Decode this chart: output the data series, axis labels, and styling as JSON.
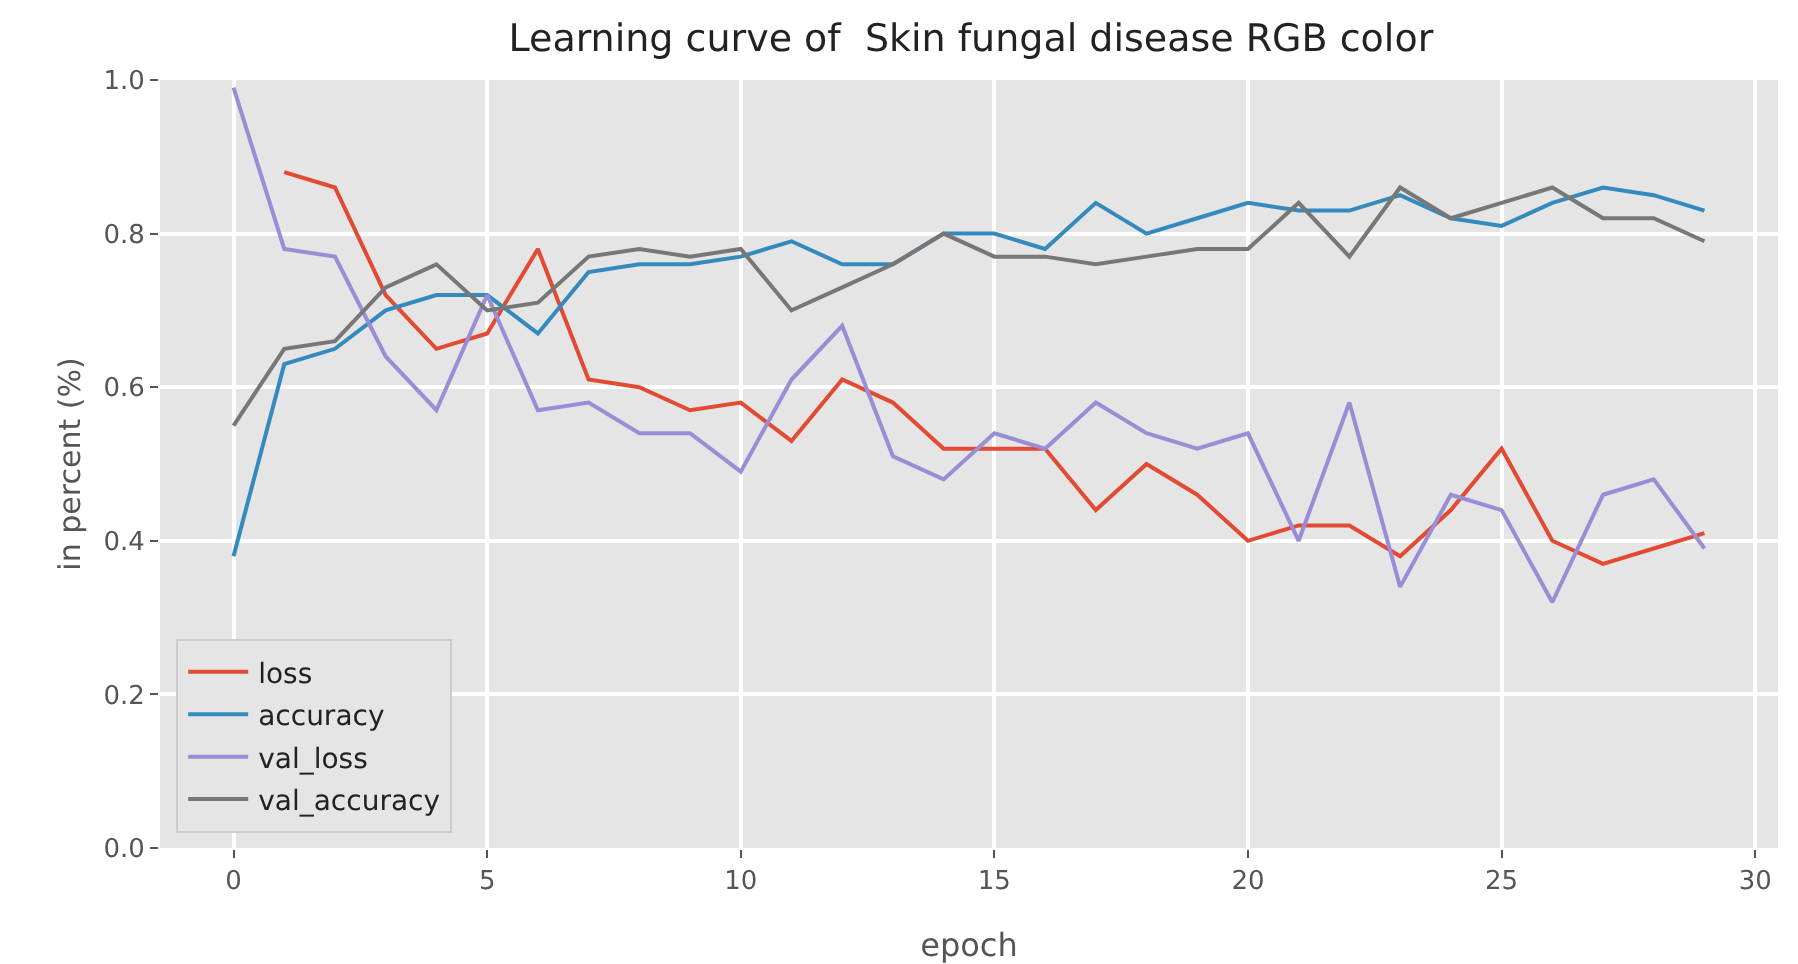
{
  "chart_data": {
    "type": "line",
    "title": "Learning curve of  Skin fungal disease RGB color",
    "xlabel": "epoch",
    "ylabel": "in percent (%)",
    "x": [
      0,
      1,
      2,
      3,
      4,
      5,
      6,
      7,
      8,
      9,
      10,
      11,
      12,
      13,
      14,
      15,
      16,
      17,
      18,
      19,
      20,
      21,
      22,
      23,
      24,
      25,
      26,
      27,
      28,
      29
    ],
    "series": [
      {
        "name": "loss",
        "color": "#e24a33",
        "values": [
          null,
          0.88,
          0.86,
          0.72,
          0.65,
          0.67,
          0.78,
          0.61,
          0.6,
          0.57,
          0.58,
          0.53,
          0.61,
          0.58,
          0.52,
          0.52,
          0.52,
          0.44,
          0.5,
          0.46,
          0.4,
          0.42,
          0.42,
          0.38,
          0.44,
          0.52,
          0.4,
          0.37,
          0.39,
          0.41
        ]
      },
      {
        "name": "accuracy",
        "color": "#348abd",
        "values": [
          0.38,
          0.63,
          0.65,
          0.7,
          0.72,
          0.72,
          0.67,
          0.75,
          0.76,
          0.76,
          0.77,
          0.79,
          0.76,
          0.76,
          0.8,
          0.8,
          0.78,
          0.84,
          0.8,
          0.82,
          0.84,
          0.83,
          0.83,
          0.85,
          0.82,
          0.81,
          0.84,
          0.86,
          0.85,
          0.83
        ]
      },
      {
        "name": "val_loss",
        "color": "#988ed5",
        "values": [
          0.99,
          0.78,
          0.77,
          0.64,
          0.57,
          0.72,
          0.57,
          0.58,
          0.54,
          0.54,
          0.49,
          0.61,
          0.68,
          0.51,
          0.48,
          0.54,
          0.52,
          0.58,
          0.54,
          0.52,
          0.54,
          0.4,
          0.58,
          0.34,
          0.46,
          0.44,
          0.32,
          0.46,
          0.48,
          0.39
        ]
      },
      {
        "name": "val_accuracy",
        "color": "#777777",
        "values": [
          0.55,
          0.65,
          0.66,
          0.73,
          0.76,
          0.7,
          0.71,
          0.77,
          0.78,
          0.77,
          0.78,
          0.7,
          0.73,
          0.76,
          0.8,
          0.77,
          0.77,
          0.76,
          0.77,
          0.78,
          0.78,
          0.84,
          0.77,
          0.86,
          0.82,
          0.84,
          0.86,
          0.82,
          0.82,
          0.79
        ]
      }
    ],
    "xlim": [
      -1.45,
      30.45
    ],
    "xticks": [
      0,
      5,
      10,
      15,
      20,
      25,
      30
    ],
    "ylim": [
      0,
      1
    ],
    "yticks": [
      {
        "value": 0,
        "label": "0.0"
      },
      {
        "value": 0.2,
        "label": "0.2"
      },
      {
        "value": 0.4,
        "label": "0.4"
      },
      {
        "value": 0.6,
        "label": "0.6"
      },
      {
        "value": 0.8,
        "label": "0.8"
      },
      {
        "value": 1,
        "label": "1.0"
      }
    ],
    "grid": true,
    "legend": "bottom left",
    "marker": "none",
    "line_style": "solid"
  }
}
